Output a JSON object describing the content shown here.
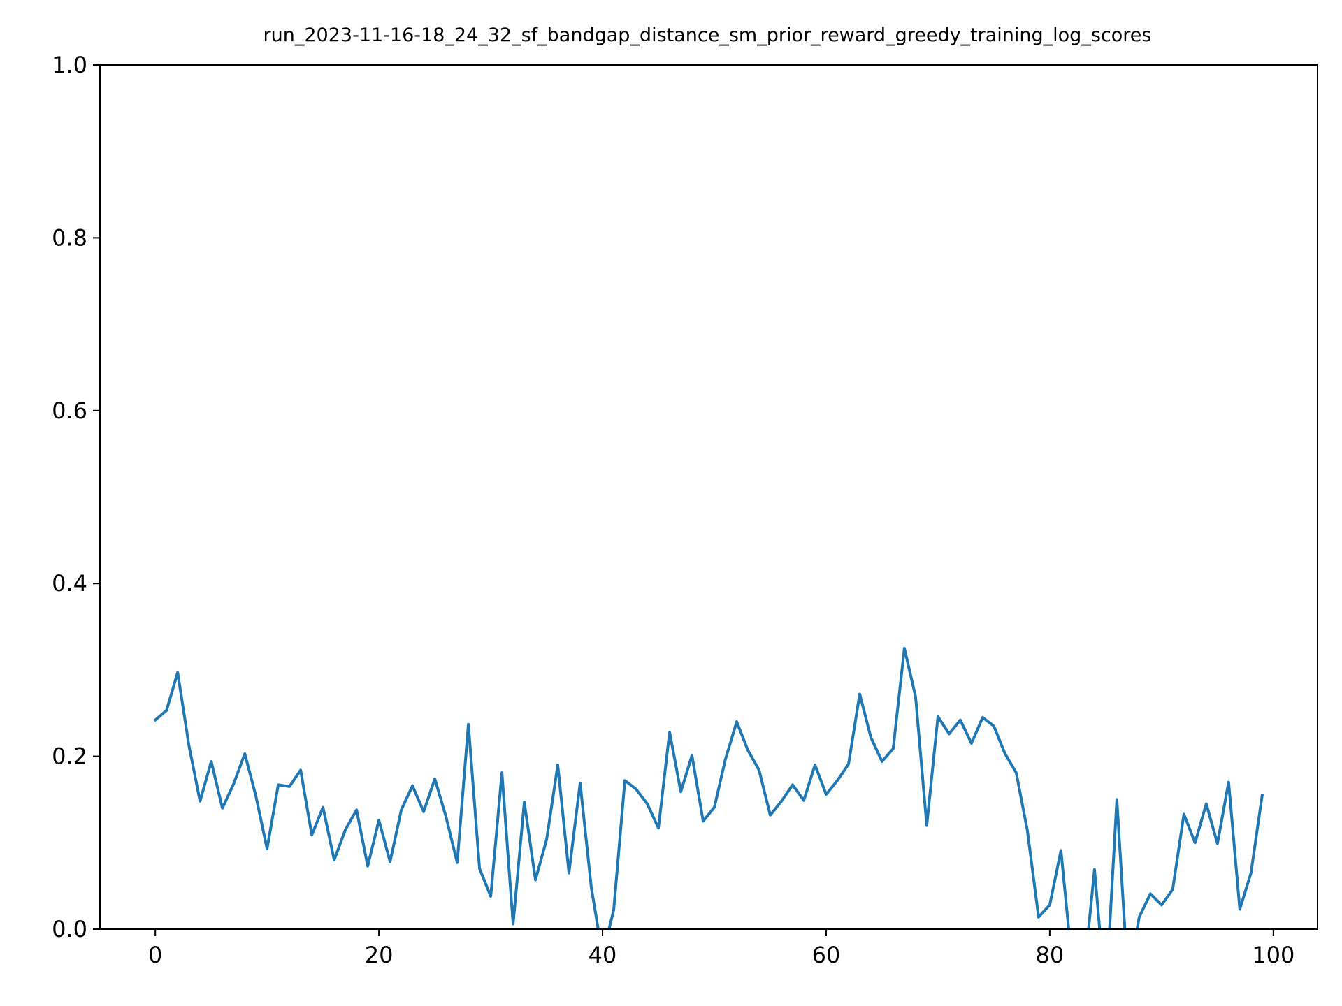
{
  "colors": {
    "background": "#ffffff",
    "axes": "#000000",
    "series_line": "#1f77b4"
  },
  "chart_data": {
    "type": "line",
    "title": "run_2023-11-16-18_24_32_sf_bandgap_distance_sm_prior_reward_greedy_training_log_scores",
    "xlabel": "",
    "ylabel": "",
    "xlim": [
      -4.95,
      103.95
    ],
    "ylim": [
      0.0,
      1.0
    ],
    "xticks": [
      0,
      20,
      40,
      60,
      80,
      100
    ],
    "xtick_labels": [
      "0",
      "20",
      "40",
      "60",
      "80",
      "100"
    ],
    "yticks": [
      0.0,
      0.2,
      0.4,
      0.6,
      0.8,
      1.0
    ],
    "ytick_labels": [
      "0.0",
      "0.2",
      "0.4",
      "0.6",
      "0.8",
      "1.0"
    ],
    "grid": false,
    "legend": "none",
    "series": [
      {
        "x": [
          0,
          1,
          2,
          3,
          4,
          5,
          6,
          7,
          8,
          9,
          10,
          11,
          12,
          13,
          14,
          15,
          16,
          17,
          18,
          19,
          20,
          21,
          22,
          23,
          24,
          25,
          26,
          27,
          28,
          29,
          30,
          31,
          32,
          33,
          34,
          35,
          36,
          37,
          38,
          39,
          40,
          41,
          42,
          43,
          44,
          45,
          46,
          47,
          48,
          49,
          50,
          51,
          52,
          53,
          54,
          55,
          56,
          57,
          58,
          59,
          60,
          61,
          62,
          63,
          64,
          65,
          66,
          67,
          68,
          69,
          70,
          71,
          72,
          73,
          74,
          75,
          76,
          77,
          78,
          79,
          80,
          81,
          82,
          83,
          84,
          85,
          86,
          87,
          88,
          89,
          90,
          91,
          92,
          93,
          94,
          95,
          96,
          97,
          98,
          99
        ],
        "values": [
          0.242,
          0.253,
          0.297,
          0.213,
          0.148,
          0.194,
          0.14,
          0.168,
          0.203,
          0.154,
          0.093,
          0.167,
          0.165,
          0.184,
          0.109,
          0.141,
          0.08,
          0.115,
          0.138,
          0.073,
          0.126,
          0.078,
          0.138,
          0.166,
          0.136,
          0.174,
          0.13,
          0.077,
          0.237,
          0.07,
          0.038,
          0.181,
          0.006,
          0.147,
          0.057,
          0.104,
          0.19,
          0.065,
          0.169,
          0.048,
          -0.03,
          0.022,
          0.172,
          0.162,
          0.145,
          0.117,
          0.228,
          0.159,
          0.201,
          0.125,
          0.141,
          0.197,
          0.24,
          0.207,
          0.184,
          0.132,
          0.148,
          0.167,
          0.149,
          0.19,
          0.156,
          0.172,
          0.191,
          0.272,
          0.222,
          0.194,
          0.209,
          0.325,
          0.269,
          0.12,
          0.246,
          0.226,
          0.242,
          0.215,
          0.245,
          0.235,
          0.203,
          0.181,
          0.114,
          0.014,
          0.028,
          0.091,
          -0.04,
          -0.06,
          0.069,
          -0.08,
          0.15,
          -0.06,
          0.014,
          0.041,
          0.028,
          0.046,
          0.133,
          0.1,
          0.145,
          0.099,
          0.17,
          0.023,
          0.065,
          0.155
        ]
      }
    ]
  }
}
